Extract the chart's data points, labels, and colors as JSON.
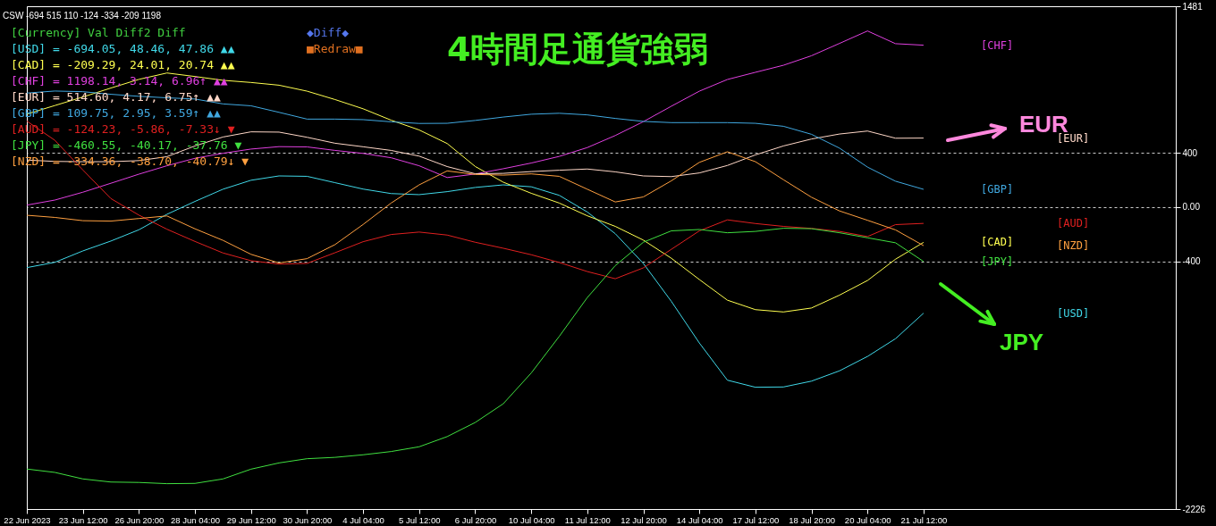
{
  "chart_data": {
    "type": "line",
    "title": "4時間足通貨強弱",
    "categories": [
      "22 Jun 2023",
      null,
      "23 Jun 12:00",
      null,
      "26 Jun 20:00",
      null,
      "28 Jun 04:00",
      null,
      "29 Jun 12:00",
      null,
      "30 Jun 20:00",
      null,
      "4 Jul 04:00",
      null,
      "5 Jul 12:00",
      null,
      "6 Jul 20:00",
      null,
      "10 Jul 04:00",
      null,
      "11 Jul 12:00",
      null,
      "12 Jul 20:00",
      null,
      "14 Jul 04:00",
      null,
      "17 Jul 12:00",
      null,
      "18 Jul 20:00",
      null,
      "20 Jul 04:00",
      null,
      "21 Jul 12:00",
      null,
      null,
      null,
      null,
      null,
      null,
      null,
      null,
      null
    ],
    "series": [
      {
        "name": "[USD]",
        "color": "#40d8e8",
        "values": [
          -446,
          -407,
          -323,
          -250,
          -167,
          -53,
          42,
          132,
          198,
          230,
          227,
          180,
          133,
          100,
          92,
          114,
          145,
          164,
          150,
          87,
          -36,
          -196,
          -415,
          -695,
          -1002,
          -1276,
          -1328,
          -1326,
          -1283,
          -1207,
          -1101,
          -970,
          -782,
          null,
          null,
          null,
          null,
          null,
          null,
          null,
          null,
          null
        ]
      },
      {
        "name": "[CAD]",
        "color": "#ffff50",
        "values": [
          686,
          749,
          812,
          878,
          942,
          989,
          963,
          935,
          919,
          899,
          855,
          793,
          725,
          641,
          569,
          469,
          300,
          184,
          102,
          30,
          -64,
          -142,
          -243,
          -377,
          -534,
          -686,
          -756,
          -773,
          -744,
          -649,
          -541,
          -384,
          -260,
          null,
          null,
          null,
          null,
          null,
          null,
          null,
          null,
          null
        ]
      },
      {
        "name": "[CHF]",
        "color": "#e040e0",
        "values": [
          15,
          52,
          110,
          176,
          243,
          305,
          360,
          397,
          428,
          446,
          444,
          418,
          396,
          364,
          305,
          218,
          244,
          283,
          325,
          374,
          439,
          528,
          630,
          744,
          855,
          941,
          994,
          1046,
          1116,
          1207,
          1299,
          1205,
          1194,
          null,
          null,
          null,
          null,
          null,
          null,
          null,
          null,
          null
        ]
      },
      {
        "name": "[EUR]",
        "color": "#ffd8c8",
        "values": [
          347,
          337,
          335,
          335,
          343,
          372,
          451,
          517,
          555,
          553,
          515,
          471,
          445,
          418,
          376,
          299,
          246,
          249,
          262,
          272,
          281,
          260,
          230,
          225,
          252,
          307,
          385,
          451,
          502,
          539,
          561,
          508,
          509,
          null,
          null,
          null,
          null,
          null,
          null,
          null,
          null,
          null
        ]
      },
      {
        "name": "[GBP]",
        "color": "#40a8e0",
        "values": [
          841,
          856,
          851,
          832,
          817,
          806,
          797,
          761,
          747,
          699,
          649,
          649,
          645,
          629,
          617,
          618,
          639,
          664,
          685,
          692,
          680,
          654,
          632,
          623,
          623,
          623,
          618,
          596,
          537,
          435,
          295,
          191,
          131,
          null,
          null,
          null,
          null,
          null,
          null,
          null,
          null,
          null
        ]
      },
      {
        "name": "[AUD]",
        "color": "#e02020",
        "values": [
          634,
          493,
          274,
          63,
          -59,
          -163,
          -253,
          -338,
          -395,
          -420,
          -415,
          -336,
          -255,
          -202,
          -184,
          -206,
          -259,
          -303,
          -351,
          -408,
          -475,
          -528,
          -448,
          -311,
          -175,
          -94,
          -121,
          -142,
          -157,
          -179,
          -217,
          -129,
          -120,
          null,
          null,
          null,
          null,
          null,
          null,
          null,
          null,
          null
        ]
      },
      {
        "name": "[JPY]",
        "color": "#40e040",
        "values": [
          -1931,
          -1956,
          -2004,
          -2027,
          -2030,
          -2039,
          -2037,
          -2004,
          -1932,
          -1886,
          -1855,
          -1845,
          -1826,
          -1802,
          -1767,
          -1692,
          -1588,
          -1450,
          -1223,
          -953,
          -667,
          -431,
          -259,
          -175,
          -165,
          -189,
          -179,
          -156,
          -159,
          -189,
          -226,
          -263,
          -401,
          null,
          null,
          null,
          null,
          null,
          null,
          null,
          null,
          null
        ]
      },
      {
        "name": "[NZD]",
        "color": "#ffa040",
        "values": [
          -60,
          -76,
          -100,
          -103,
          -84,
          -65,
          -160,
          -245,
          -348,
          -412,
          -380,
          -276,
          -128,
          30,
          164,
          267,
          241,
          236,
          245,
          227,
          132,
          38,
          75,
          194,
          330,
          408,
          335,
          202,
          73,
          -28,
          -97,
          -168,
          -284,
          null,
          null,
          null,
          null,
          null,
          null,
          null,
          null,
          null
        ]
      }
    ],
    "ylim": [
      -2226,
      1481
    ],
    "yticks": [
      -2226,
      -400,
      {
        "value": 0,
        "label": "0.00"
      },
      400,
      1481
    ],
    "grid": "y",
    "annotations": [
      "CSW -694 515 110 -124 -334 -209 1198",
      "[Currency]  Val    Diff2    Diff",
      "[USD] = -694.05,  48.46,  47.86  ▲▲",
      "[CAD] = -209.29,  24.01,  20.74  ▲▲",
      "[CHF] = 1198.14,   3.14,   6.96↑ ▲▲",
      "[EUR] =  514.60,   4.17,   6.75↑ ▲▲",
      "[GBP] =  109.75,   2.95,   3.59↑ ▲▲",
      "[AUD] = -124.23,  -5.86,  -7.33↓ ▼",
      "[JPY] = -460.55, -40.17, -37.76  ▼",
      "[NZD] = -334.36, -38.70, -40.79↓ ▼",
      "◆Diff◆",
      "■Redraw■",
      "EUR",
      "JPY"
    ]
  }
}
